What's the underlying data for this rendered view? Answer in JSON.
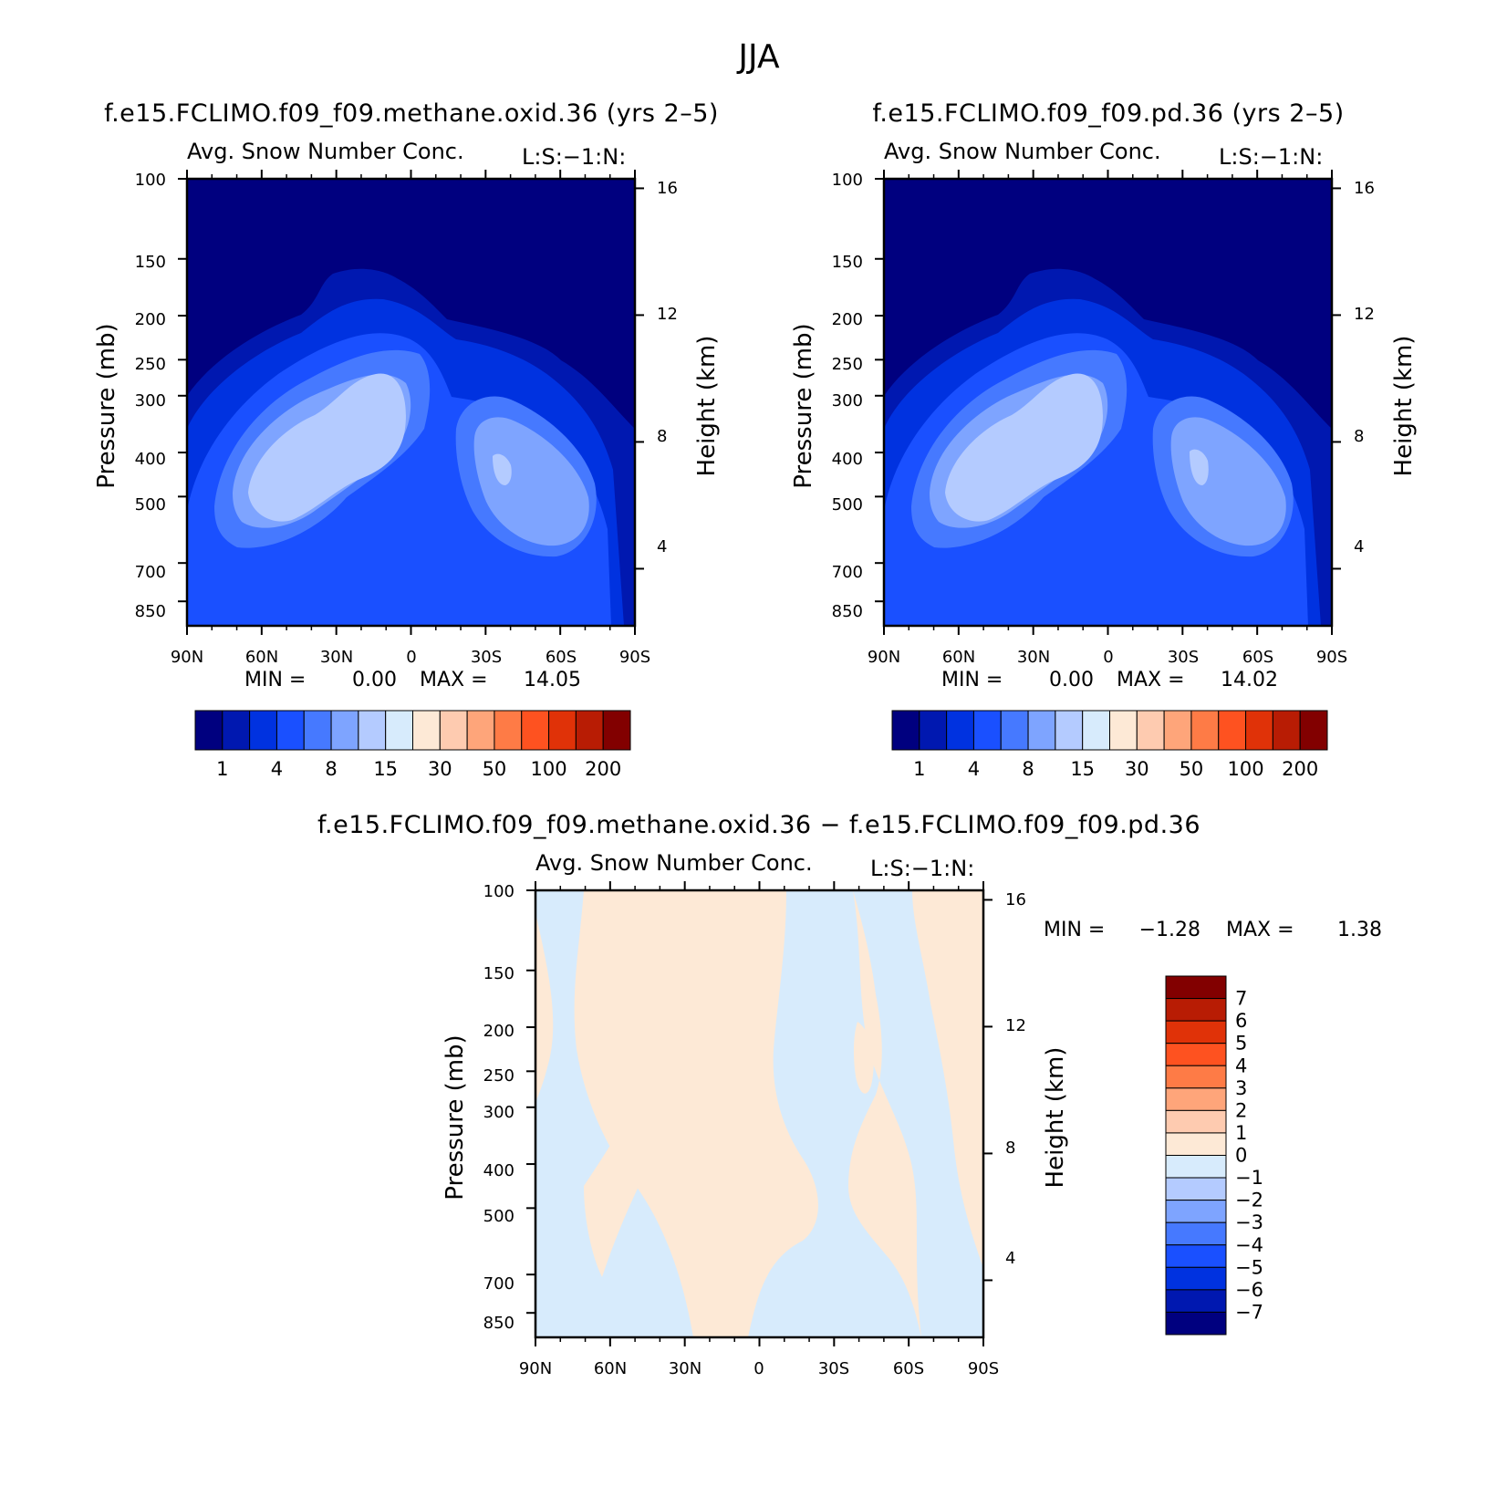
{
  "figure": {
    "season_title": "JJA"
  },
  "chart_data": [
    {
      "type": "heatmap",
      "title": "f.e15.FCLIMO.f09_f09.methane.oxid.36 (yrs 2–5)",
      "subtitle": "Avg. Snow Number Conc.",
      "corner_label": "L:S:−1:N:",
      "ylabel": "Pressure (mb)",
      "ylabel_right": "Height (km)",
      "x_ticks": [
        "90N",
        "60N",
        "30N",
        "0",
        "30S",
        "60S",
        "90S"
      ],
      "y_ticks": [
        "100",
        "150",
        "200",
        "250",
        "300",
        "400",
        "500",
        "700",
        "850"
      ],
      "y_ticks_right": [
        "16",
        "12",
        "8",
        "4"
      ],
      "stats": {
        "min_label": "MIN =",
        "min_value": "0.00",
        "max_label": "MAX =",
        "max_value": "14.05"
      },
      "colorbar": {
        "orientation": "horizontal",
        "labels": [
          "1",
          "4",
          "8",
          "15",
          "30",
          "50",
          "100",
          "200"
        ],
        "colors": [
          "#00007f",
          "#0018b0",
          "#0032e0",
          "#1a50ff",
          "#4679ff",
          "#7ea4ff",
          "#b4cbff",
          "#d7ebfc",
          "#fde9d6",
          "#fecbb0",
          "#fea57a",
          "#fe7b46",
          "#fe5220",
          "#e03208",
          "#b81c04",
          "#820000"
        ]
      }
    },
    {
      "type": "heatmap",
      "title": "f.e15.FCLIMO.f09_f09.pd.36 (yrs 2–5)",
      "subtitle": "Avg. Snow Number Conc.",
      "corner_label": "L:S:−1:N:",
      "ylabel": "Pressure (mb)",
      "ylabel_right": "Height (km)",
      "x_ticks": [
        "90N",
        "60N",
        "30N",
        "0",
        "30S",
        "60S",
        "90S"
      ],
      "y_ticks": [
        "100",
        "150",
        "200",
        "250",
        "300",
        "400",
        "500",
        "700",
        "850"
      ],
      "y_ticks_right": [
        "16",
        "12",
        "8",
        "4"
      ],
      "stats": {
        "min_label": "MIN =",
        "min_value": "0.00",
        "max_label": "MAX =",
        "max_value": "14.02"
      },
      "colorbar": {
        "orientation": "horizontal",
        "labels": [
          "1",
          "4",
          "8",
          "15",
          "30",
          "50",
          "100",
          "200"
        ],
        "colors": [
          "#00007f",
          "#0018b0",
          "#0032e0",
          "#1a50ff",
          "#4679ff",
          "#7ea4ff",
          "#b4cbff",
          "#d7ebfc",
          "#fde9d6",
          "#fecbb0",
          "#fea57a",
          "#fe7b46",
          "#fe5220",
          "#e03208",
          "#b81c04",
          "#820000"
        ]
      }
    },
    {
      "type": "heatmap",
      "title": "f.e15.FCLIMO.f09_f09.methane.oxid.36 − f.e15.FCLIMO.f09_f09.pd.36",
      "subtitle": "Avg. Snow Number Conc.",
      "corner_label": "L:S:−1:N:",
      "ylabel": "Pressure (mb)",
      "ylabel_right": "Height (km)",
      "x_ticks": [
        "90N",
        "60N",
        "30N",
        "0",
        "30S",
        "60S",
        "90S"
      ],
      "y_ticks": [
        "100",
        "150",
        "200",
        "250",
        "300",
        "400",
        "500",
        "700",
        "850"
      ],
      "y_ticks_right": [
        "16",
        "12",
        "8",
        "4"
      ],
      "stats": {
        "min_label": "MIN =",
        "min_value": "−1.28",
        "max_label": "MAX =",
        "max_value": "1.38"
      },
      "colorbar": {
        "orientation": "vertical",
        "labels": [
          "7",
          "6",
          "5",
          "4",
          "3",
          "2",
          "1",
          "0",
          "−1",
          "−2",
          "−3",
          "−4",
          "−5",
          "−6",
          "−7"
        ],
        "colors": [
          "#820000",
          "#b81c04",
          "#e03208",
          "#fe5220",
          "#fe7b46",
          "#fea57a",
          "#fecbb0",
          "#fde9d6",
          "#d7ebfc",
          "#b4cbff",
          "#7ea4ff",
          "#4679ff",
          "#1a50ff",
          "#0032e0",
          "#0018b0",
          "#00007f"
        ]
      }
    }
  ]
}
